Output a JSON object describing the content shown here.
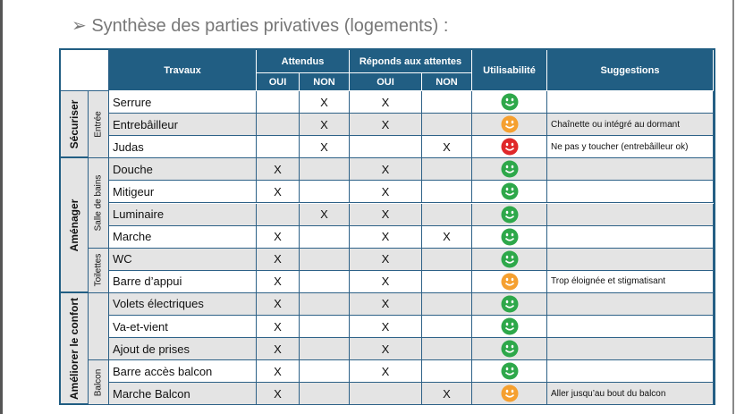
{
  "title": "Synthèse des parties privatives (logements) :",
  "header": {
    "travaux": "Travaux",
    "attendus": "Attendus",
    "repond": "Réponds aux attentes",
    "utilisabilite": "Utilisabilité",
    "suggestions": "Suggestions",
    "oui": "OUI",
    "non": "NON"
  },
  "groups": [
    {
      "label": "Sécuriser",
      "subgroups": [
        {
          "label": "Entrée",
          "rows": [
            {
              "cells": [
                "Serrure",
                null,
                "X",
                "X",
                null,
                null
              ],
              "smiley": "#2ea84a"
            },
            {
              "cells": [
                "Entrebâilleur",
                null,
                "X",
                "X",
                null,
                "Chaînette ou intégré au dormant"
              ],
              "smiley": "#f5a030"
            },
            {
              "cells": [
                "Judas",
                null,
                "X",
                null,
                "X",
                "Ne pas y toucher (entrebâilleur ok)"
              ],
              "smiley": "#e0282a"
            }
          ]
        }
      ]
    },
    {
      "label": "Aménager",
      "subgroups": [
        {
          "label": "Salle de bains",
          "rows": [
            {
              "cells": [
                "Douche",
                "X",
                null,
                "X",
                null,
                null
              ],
              "smiley": "#2ea84a"
            },
            {
              "cells": [
                "Mitigeur",
                "X",
                null,
                "X",
                null,
                null
              ],
              "smiley": "#2ea84a"
            },
            {
              "cells": [
                "Luminaire",
                null,
                "X",
                "X",
                null,
                null
              ],
              "smiley": "#2ea84a"
            },
            {
              "cells": [
                "Marche",
                "X",
                null,
                "X",
                "X",
                null
              ],
              "smiley": "#2ea84a"
            }
          ]
        },
        {
          "label": "Toilettes",
          "rows": [
            {
              "cells": [
                "WC",
                "X",
                null,
                "X",
                null,
                null
              ],
              "smiley": "#2ea84a"
            },
            {
              "cells": [
                "Barre d’appui",
                "X",
                null,
                "X",
                null,
                "Trop éloignée et stigmatisant"
              ],
              "smiley": "#f5a030"
            }
          ]
        }
      ]
    },
    {
      "label": "Améliorer le confort",
      "subgroups": [
        {
          "label": null,
          "rows": [
            {
              "cells": [
                "Volets électriques",
                "X",
                null,
                "X",
                null,
                null
              ],
              "smiley": "#2ea84a"
            },
            {
              "cells": [
                "Va-et-vient",
                "X",
                null,
                "X",
                null,
                null
              ],
              "smiley": "#2ea84a"
            },
            {
              "cells": [
                "Ajout de prises",
                "X",
                null,
                "X",
                null,
                null
              ],
              "smiley": "#2ea84a"
            }
          ]
        },
        {
          "label": "Balcon",
          "rows": [
            {
              "cells": [
                "Barre accès balcon",
                "X",
                null,
                "X",
                null,
                null
              ],
              "smiley": "#2ea84a"
            },
            {
              "cells": [
                "Marche Balcon",
                "X",
                null,
                null,
                "X",
                "Aller jusqu’au bout du balcon"
              ],
              "smiley": "#f5a030"
            }
          ]
        }
      ]
    }
  ]
}
